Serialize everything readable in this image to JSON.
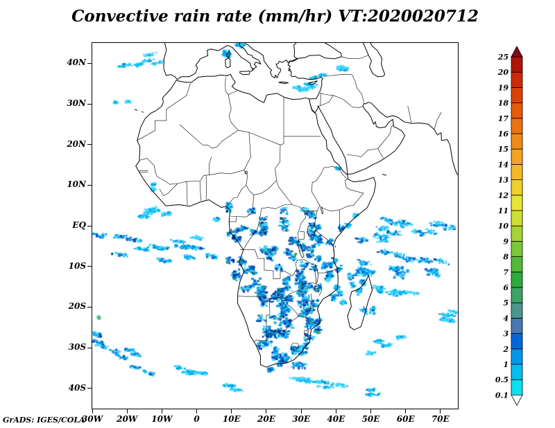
{
  "figure": {
    "title": "Convective rain rate (mm/hr) VT:2020020712",
    "credit": "GrADS: IGES/COLA"
  },
  "chart_data": {
    "type": "heatmap",
    "title": "Convective rain rate (mm/hr) VT:2020020712",
    "field": "convective rain rate",
    "units": "mm/hr",
    "valid_time": "2020020712",
    "projection": "latlon",
    "lon_range": [
      -30,
      75
    ],
    "lat_range": [
      -45,
      45
    ],
    "grid": false,
    "legend_position": "right",
    "x_ticks": [
      {
        "label": "30W",
        "lon": -30
      },
      {
        "label": "20W",
        "lon": -20
      },
      {
        "label": "10W",
        "lon": -10
      },
      {
        "label": "0",
        "lon": 0
      },
      {
        "label": "10E",
        "lon": 10
      },
      {
        "label": "20E",
        "lon": 20
      },
      {
        "label": "30E",
        "lon": 30
      },
      {
        "label": "40E",
        "lon": 40
      },
      {
        "label": "50E",
        "lon": 50
      },
      {
        "label": "60E",
        "lon": 60
      },
      {
        "label": "70E",
        "lon": 70
      }
    ],
    "y_ticks": [
      {
        "label": "40N",
        "lat": 40
      },
      {
        "label": "30N",
        "lat": 30
      },
      {
        "label": "20N",
        "lat": 20
      },
      {
        "label": "10N",
        "lat": 10
      },
      {
        "label": "EQ",
        "lat": 0
      },
      {
        "label": "10S",
        "lat": -10
      },
      {
        "label": "20S",
        "lat": -20
      },
      {
        "label": "30S",
        "lat": -30
      },
      {
        "label": "40S",
        "lat": -40
      }
    ],
    "colorbar": {
      "boundary_labels_bottom_to_top": [
        "0.1",
        "0.5",
        "1",
        "2",
        "3",
        "4",
        "5",
        "6",
        "7",
        "8",
        "9",
        "10",
        "11",
        "12",
        "13",
        "14",
        "15",
        "16",
        "17",
        "18",
        "19",
        "20",
        "25"
      ],
      "interval_colors_bottom_to_top": [
        "#0ae0f0",
        "#00c0f0",
        "#0098ec",
        "#0066dc",
        "#4878b4",
        "#4e968c",
        "#3ca464",
        "#2eaa3c",
        "#52ba38",
        "#7cc838",
        "#a6d434",
        "#cce032",
        "#e8e432",
        "#f0d02c",
        "#f4ba24",
        "#f4a41e",
        "#f08c16",
        "#ec7410",
        "#e65a0a",
        "#dc4206",
        "#cc2a04",
        "#b01404"
      ],
      "above_max_color": "#86081c",
      "below_min_color": "#ffffff",
      "outline_color": "#000000"
    },
    "palettes": {
      "light": {
        "colors": [
          "#45daff",
          "#00b9f2",
          "#0090e0"
        ],
        "weights": [
          0.55,
          0.3,
          0.15
        ]
      },
      "medium": {
        "colors": [
          "#45daff",
          "#00acee",
          "#0074da",
          "#0047b6"
        ],
        "weights": [
          0.38,
          0.3,
          0.22,
          0.1
        ]
      },
      "medheavy": {
        "colors": [
          "#38d4ff",
          "#00a2e8",
          "#0066d0",
          "#0038aa",
          "#3d9c8e"
        ],
        "weights": [
          0.3,
          0.28,
          0.25,
          0.14,
          0.03
        ]
      },
      "heavy": {
        "colors": [
          "#38d4ff",
          "#009ce4",
          "#005cc8",
          "#0030a0",
          "#3d9c8e",
          "#35aa55"
        ],
        "weights": [
          0.26,
          0.26,
          0.24,
          0.17,
          0.04,
          0.03
        ]
      },
      "green": {
        "colors": [
          "#45daff",
          "#35aa55",
          "#b8d438"
        ],
        "weights": [
          0.5,
          0.3,
          0.2
        ]
      }
    },
    "rain_regions": [
      {
        "name": "north-atlantic-streaks",
        "shape": "box",
        "lon": [
          -27,
          -10
        ],
        "lat": [
          38.5,
          44.5
        ],
        "points": 100,
        "palette": "light",
        "spread": [
          2.2,
          0.45
        ],
        "slope": 0.15
      },
      {
        "name": "alps-north-italy",
        "shape": "box",
        "lon": [
          4,
          14
        ],
        "lat": [
          42,
          45
        ],
        "points": 70,
        "palette": "light",
        "spread": [
          1.3,
          0.6
        ],
        "slope": 0
      },
      {
        "name": "turkey-diagonal",
        "shape": "band",
        "from": [
          28.5,
          33.8
        ],
        "to": [
          45.5,
          39.3
        ],
        "jitter": 1.1,
        "points": 180,
        "palette": "light",
        "spread": [
          1.6,
          0.45
        ],
        "slope": 0.1
      },
      {
        "name": "morocco-offshore",
        "shape": "box",
        "lon": [
          -24,
          -14
        ],
        "lat": [
          26,
          32
        ],
        "points": 35,
        "palette": "light",
        "spread": [
          0.8,
          0.4
        ],
        "slope": 0
      },
      {
        "name": "west-africa-specks",
        "shape": "box",
        "lon": [
          -15,
          -9
        ],
        "lat": [
          8,
          13
        ],
        "points": 30,
        "palette": "light",
        "spread": [
          0.7,
          0.5
        ],
        "slope": 0
      },
      {
        "name": "tropical-atlantic-north",
        "shape": "box",
        "lon": [
          -27,
          -8
        ],
        "lat": [
          0,
          5
        ],
        "points": 90,
        "palette": "light",
        "spread": [
          1.8,
          0.5
        ],
        "slope": 0.1
      },
      {
        "name": "equatorial-atlantic-band",
        "shape": "box",
        "lon": [
          -30,
          5
        ],
        "lat": [
          -9,
          -1
        ],
        "points": 300,
        "palette": "medium",
        "spread": [
          2.6,
          0.55
        ],
        "slope": -0.1
      },
      {
        "name": "gulf-of-guinea",
        "shape": "box",
        "lon": [
          4,
          10
        ],
        "lat": [
          1,
          6
        ],
        "points": 60,
        "palette": "medium",
        "spread": [
          1,
          0.8
        ],
        "slope": 0
      },
      {
        "name": "congo-basin",
        "shape": "box",
        "lon": [
          9,
          33
        ],
        "lat": [
          -16,
          4
        ],
        "points": 950,
        "palette": "heavy",
        "spread": [
          1.4,
          1.1
        ],
        "slope": 0
      },
      {
        "name": "east-africa",
        "shape": "box",
        "lon": [
          33,
          41.5
        ],
        "lat": [
          -12,
          1
        ],
        "points": 300,
        "palette": "medheavy",
        "spread": [
          1.2,
          1
        ],
        "slope": 0
      },
      {
        "name": "southern-africa",
        "shape": "box",
        "lon": [
          18,
          36
        ],
        "lat": [
          -30,
          -14
        ],
        "points": 850,
        "palette": "heavy",
        "spread": [
          1.5,
          1.2
        ],
        "slope": 0
      },
      {
        "name": "south-africa-coast",
        "shape": "box",
        "lon": [
          19,
          31
        ],
        "lat": [
          -36,
          -29
        ],
        "points": 260,
        "palette": "medheavy",
        "spread": [
          1.3,
          0.9
        ],
        "slope": 0.2
      },
      {
        "name": "mozambique-madagascar",
        "shape": "box",
        "lon": [
          37,
          51.5
        ],
        "lat": [
          -26,
          -11
        ],
        "points": 260,
        "palette": "medium",
        "spread": [
          1.1,
          1
        ],
        "slope": 0
      },
      {
        "name": "somalia-kenya-specks",
        "shape": "box",
        "lon": [
          40,
          47
        ],
        "lat": [
          -3,
          3
        ],
        "points": 45,
        "palette": "light",
        "spread": [
          1,
          0.7
        ],
        "slope": 0
      },
      {
        "name": "central-indian-ocean",
        "shape": "box",
        "lon": [
          46,
          74.5
        ],
        "lat": [
          -13,
          3
        ],
        "points": 520,
        "palette": "medium",
        "spread": [
          2.4,
          0.75
        ],
        "slope": -0.12
      },
      {
        "name": "south-indian-streaks",
        "shape": "band",
        "from": [
          52,
          -14.5
        ],
        "to": [
          74.5,
          -23.5
        ],
        "jitter": 2.2,
        "points": 170,
        "palette": "light",
        "spread": [
          2.4,
          0.5
        ],
        "slope": -0.15
      },
      {
        "name": "below-madagascar",
        "shape": "box",
        "lon": [
          48,
          60
        ],
        "lat": [
          -33,
          -26
        ],
        "points": 80,
        "palette": "light",
        "spread": [
          1.8,
          0.5
        ],
        "slope": 0.1
      },
      {
        "name": "southwest-atlantic-swirl",
        "shape": "band",
        "from": [
          -30,
          -26
        ],
        "to": [
          -11,
          -37.5
        ],
        "jitter": 2,
        "points": 200,
        "palette": "medium",
        "spread": [
          1.9,
          0.5
        ],
        "slope": -0.2
      },
      {
        "name": "green-speck",
        "shape": "box",
        "lon": [
          -29,
          -27
        ],
        "lat": [
          -23,
          -21
        ],
        "points": 16,
        "palette": "green",
        "spread": [
          0.5,
          0.4
        ],
        "slope": 0
      },
      {
        "name": "south-atlantic-arcs",
        "shape": "band",
        "from": [
          -6,
          -34.5
        ],
        "to": [
          14,
          -41.5
        ],
        "jitter": 1.4,
        "points": 140,
        "palette": "light",
        "spread": [
          2.2,
          0.45
        ],
        "slope": -0.15
      },
      {
        "name": "southern-ocean-streak",
        "shape": "band",
        "from": [
          28,
          -38
        ],
        "to": [
          56,
          -41.8
        ],
        "jitter": 1.2,
        "points": 160,
        "palette": "light",
        "spread": [
          2.6,
          0.45
        ],
        "slope": -0.05
      },
      {
        "name": "red-sea-specks",
        "shape": "box",
        "lon": [
          40,
          48
        ],
        "lat": [
          13,
          19
        ],
        "points": 20,
        "palette": "light",
        "spread": [
          0.7,
          0.4
        ],
        "slope": 0
      }
    ]
  }
}
